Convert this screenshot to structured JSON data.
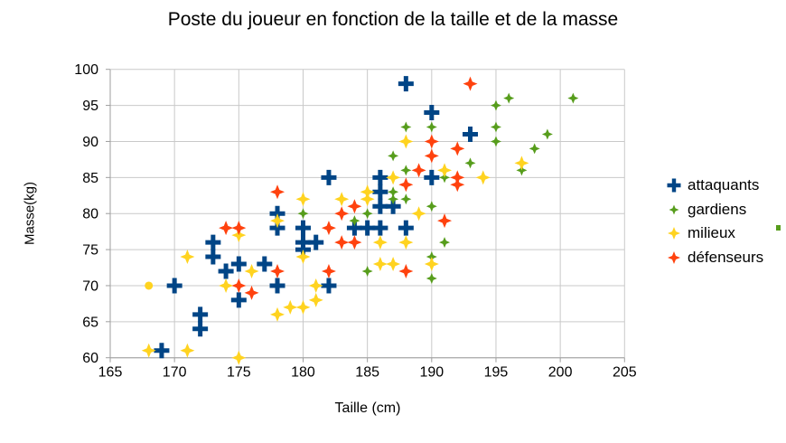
{
  "title": "Poste du joueur en fonction de la taille et de la masse",
  "x_axis": {
    "label": "Taille (cm)",
    "ticks": [
      165,
      170,
      175,
      180,
      185,
      190,
      195,
      200,
      205
    ]
  },
  "y_axis": {
    "label": "Masse(kg)",
    "ticks": [
      60,
      65,
      70,
      75,
      80,
      85,
      90,
      95,
      100
    ]
  },
  "colors": {
    "attaquants": "#004586",
    "gardiens": "#579D1C",
    "milieux": "#FFD320",
    "defenseurs": "#FF420E",
    "gridline": "#c9c9c9",
    "axis": "#9e9e9e",
    "text": "#000000"
  },
  "chart_data": {
    "type": "scatter",
    "title": "Poste du joueur en fonction de la taille et de la masse",
    "xlabel": "Taille (cm)",
    "ylabel": "Masse(kg)",
    "xlim": [
      165,
      205
    ],
    "ylim": [
      60,
      100
    ],
    "x_tick_step": 5,
    "y_tick_step": 5,
    "grid": true,
    "legend_position": "right",
    "series": [
      {
        "name": "attaquants",
        "color": "#004586",
        "marker": "plus",
        "points": [
          [
            169,
            61
          ],
          [
            170,
            70
          ],
          [
            172,
            66
          ],
          [
            172,
            64
          ],
          [
            173,
            76
          ],
          [
            173,
            74
          ],
          [
            174,
            72
          ],
          [
            175,
            73
          ],
          [
            175,
            68
          ],
          [
            177,
            73
          ],
          [
            178,
            80
          ],
          [
            178,
            78
          ],
          [
            178,
            70
          ],
          [
            180,
            78
          ],
          [
            180,
            76
          ],
          [
            180,
            75
          ],
          [
            181,
            76
          ],
          [
            182,
            85
          ],
          [
            182,
            70
          ],
          [
            184,
            78
          ],
          [
            185,
            78
          ],
          [
            186,
            85
          ],
          [
            186,
            83
          ],
          [
            186,
            81
          ],
          [
            186,
            78
          ],
          [
            187,
            81
          ],
          [
            188,
            98
          ],
          [
            188,
            78
          ],
          [
            190,
            94
          ],
          [
            190,
            85
          ],
          [
            193,
            91
          ]
        ]
      },
      {
        "name": "gardiens",
        "color": "#579D1C",
        "marker": "star4-small",
        "points": [
          [
            180,
            80
          ],
          [
            184,
            79
          ],
          [
            185,
            80
          ],
          [
            185,
            72
          ],
          [
            187,
            88
          ],
          [
            187,
            83
          ],
          [
            187,
            82
          ],
          [
            188,
            92
          ],
          [
            188,
            86
          ],
          [
            188,
            82
          ],
          [
            190,
            92
          ],
          [
            190,
            81
          ],
          [
            190,
            74
          ],
          [
            190,
            71
          ],
          [
            191,
            85
          ],
          [
            191,
            76
          ],
          [
            193,
            87
          ],
          [
            195,
            95
          ],
          [
            195,
            92
          ],
          [
            195,
            90
          ],
          [
            196,
            96
          ],
          [
            197,
            86
          ],
          [
            198,
            89
          ],
          [
            199,
            91
          ],
          [
            201,
            96
          ]
        ]
      },
      {
        "name": "milieux",
        "color": "#FFD320",
        "marker": "star4",
        "points": [
          [
            168,
            61
          ],
          [
            171,
            74
          ],
          [
            171,
            61
          ],
          [
            174,
            70
          ],
          [
            175,
            77
          ],
          [
            175,
            60
          ],
          [
            176,
            72
          ],
          [
            178,
            79
          ],
          [
            178,
            66
          ],
          [
            179,
            67
          ],
          [
            180,
            82
          ],
          [
            180,
            74
          ],
          [
            180,
            67
          ],
          [
            181,
            70
          ],
          [
            181,
            68
          ],
          [
            183,
            82
          ],
          [
            185,
            83
          ],
          [
            185,
            82
          ],
          [
            186,
            76
          ],
          [
            186,
            73
          ],
          [
            187,
            85
          ],
          [
            187,
            73
          ],
          [
            188,
            90
          ],
          [
            188,
            76
          ],
          [
            189,
            80
          ],
          [
            190,
            73
          ],
          [
            191,
            86
          ],
          [
            194,
            85
          ],
          [
            197,
            87
          ]
        ],
        "circle_points": [
          [
            168,
            70
          ]
        ]
      },
      {
        "name": "défenseurs",
        "color": "#FF420E",
        "marker": "star4",
        "points": [
          [
            174,
            78
          ],
          [
            175,
            78
          ],
          [
            175,
            70
          ],
          [
            176,
            69
          ],
          [
            178,
            83
          ],
          [
            178,
            72
          ],
          [
            182,
            78
          ],
          [
            182,
            72
          ],
          [
            183,
            80
          ],
          [
            183,
            76
          ],
          [
            184,
            81
          ],
          [
            184,
            76
          ],
          [
            188,
            84
          ],
          [
            188,
            72
          ],
          [
            189,
            86
          ],
          [
            190,
            90
          ],
          [
            190,
            88
          ],
          [
            191,
            79
          ],
          [
            192,
            89
          ],
          [
            192,
            85
          ],
          [
            192,
            84
          ],
          [
            193,
            98
          ]
        ]
      }
    ],
    "edge_artifact": {
      "color": "#579D1C",
      "x": 859,
      "y": 249,
      "width": 5,
      "height": 6
    }
  },
  "legend": {
    "items": [
      {
        "label": "attaquants",
        "marker": "plus",
        "color": "#004586"
      },
      {
        "label": "gardiens",
        "marker": "star4-small",
        "color": "#579D1C"
      },
      {
        "label": "milieux",
        "marker": "star4",
        "color": "#FFD320"
      },
      {
        "label": "défenseurs",
        "marker": "star4",
        "color": "#FF420E"
      }
    ]
  }
}
